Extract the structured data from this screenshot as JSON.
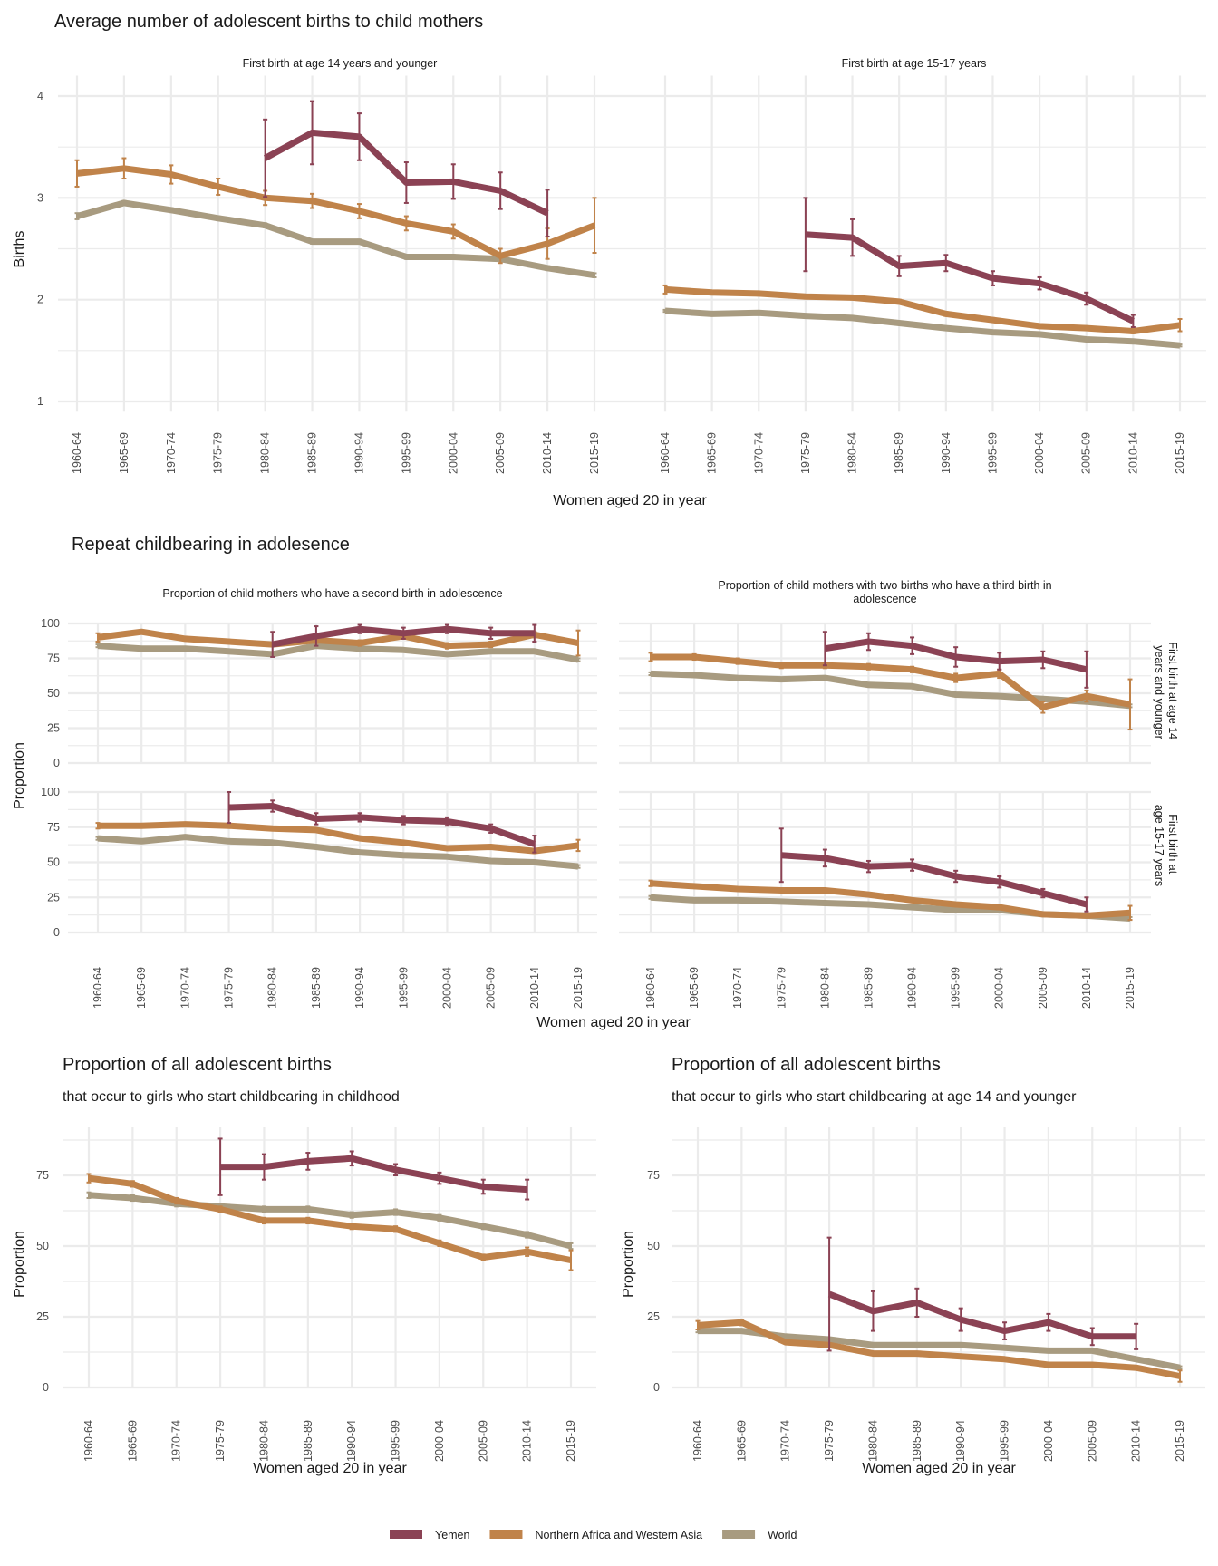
{
  "colors": {
    "Yemen": "#8b4254",
    "Northern Africa and Western Asia": "#c0834a",
    "World": "#a89b80"
  },
  "legend": {
    "items": [
      "Yemen",
      "Northern Africa and Western Asia",
      "World"
    ]
  },
  "sections": {
    "avg_births": {
      "title": "Average number of adolescent births to child mothers",
      "ylabel": "Births",
      "xlabel": "Women aged 20 in year"
    },
    "repeat": {
      "title": "Repeat childbearing in adolesence",
      "ylabel": "Proportion",
      "xlabel": "Women aged 20 in year",
      "row_strips": [
        "First birth at age 14 years and younger",
        "First birth at age 15-17 years"
      ]
    },
    "prop_child": {
      "title": "Proportion of all adolescent births",
      "subtitle": "that occur to girls who start childbearing in childhood",
      "ylabel": "Proportion",
      "xlabel": "Women aged 20 in year"
    },
    "prop_14": {
      "title": "Proportion of all adolescent births",
      "subtitle": "that occur to girls who start childbearing at age 14 and younger",
      "ylabel": "Proportion",
      "xlabel": "Women aged 20 in year"
    }
  },
  "chart_data": [
    {
      "id": "avg_14",
      "type": "line",
      "title": "First birth at age 14 years and younger",
      "xlabel": "Women aged 20 in year",
      "ylabel": "Births",
      "ylim": [
        0.9,
        4.2
      ],
      "yticks": [
        1,
        2,
        3,
        4
      ],
      "categories": [
        "1960-64",
        "1965-69",
        "1970-74",
        "1975-79",
        "1980-84",
        "1985-89",
        "1990-94",
        "1995-99",
        "2000-04",
        "2005-09",
        "2010-14",
        "2015-19"
      ],
      "series": [
        {
          "name": "World",
          "values": [
            2.82,
            2.95,
            2.88,
            2.8,
            2.73,
            2.57,
            2.57,
            2.42,
            2.42,
            2.4,
            2.31,
            2.24
          ],
          "err": [
            0.03,
            0.02,
            0.02,
            0.02,
            0.02,
            0.02,
            0.02,
            0.02,
            0.02,
            0.02,
            0.02,
            0.02
          ]
        },
        {
          "name": "Northern Africa and Western Asia",
          "values": [
            3.24,
            3.29,
            3.23,
            3.11,
            3.0,
            2.97,
            2.87,
            2.75,
            2.67,
            2.43,
            2.55,
            2.73
          ],
          "err": [
            0.13,
            0.1,
            0.09,
            0.08,
            0.07,
            0.07,
            0.07,
            0.07,
            0.07,
            0.07,
            0.15,
            0.27
          ]
        },
        {
          "name": "Yemen",
          "values": [
            null,
            null,
            null,
            null,
            3.39,
            3.64,
            3.6,
            3.15,
            3.16,
            3.07,
            2.85,
            null
          ],
          "err": [
            null,
            null,
            null,
            null,
            0.38,
            0.31,
            0.23,
            0.2,
            0.17,
            0.18,
            0.23,
            null
          ]
        }
      ]
    },
    {
      "id": "avg_15_17",
      "type": "line",
      "title": "First birth at age 15-17 years",
      "xlabel": "Women aged 20 in year",
      "ylabel": "Births",
      "ylim": [
        0.9,
        4.2
      ],
      "yticks": [
        1,
        2,
        3,
        4
      ],
      "categories": [
        "1960-64",
        "1965-69",
        "1970-74",
        "1975-79",
        "1980-84",
        "1985-89",
        "1990-94",
        "1995-99",
        "2000-04",
        "2005-09",
        "2010-14",
        "2015-19"
      ],
      "series": [
        {
          "name": "World",
          "values": [
            1.89,
            1.86,
            1.87,
            1.84,
            1.82,
            1.77,
            1.72,
            1.68,
            1.66,
            1.61,
            1.59,
            1.55
          ],
          "err": [
            0.01,
            0.01,
            0.01,
            0.01,
            0.01,
            0.01,
            0.01,
            0.01,
            0.01,
            0.01,
            0.01,
            0.01
          ]
        },
        {
          "name": "Northern Africa and Western Asia",
          "values": [
            2.1,
            2.07,
            2.06,
            2.03,
            2.02,
            1.98,
            1.86,
            1.8,
            1.74,
            1.72,
            1.69,
            1.75
          ],
          "err": [
            0.04,
            0.02,
            0.02,
            0.02,
            0.02,
            0.02,
            0.02,
            0.02,
            0.02,
            0.02,
            0.02,
            0.06
          ]
        },
        {
          "name": "Yemen",
          "values": [
            null,
            null,
            null,
            2.64,
            2.61,
            2.33,
            2.36,
            2.21,
            2.16,
            2.01,
            1.79,
            null
          ],
          "err": [
            null,
            null,
            null,
            0.36,
            0.18,
            0.1,
            0.08,
            0.07,
            0.06,
            0.06,
            0.06,
            null
          ]
        }
      ]
    },
    {
      "id": "rep_second_14",
      "type": "line",
      "title": "Proportion of child mothers who have a second birth in adolescence",
      "row": "First birth at age 14 years and younger",
      "ylabel": "Proportion",
      "ylim": [
        0,
        100
      ],
      "yticks": [
        0,
        25,
        50,
        75,
        100
      ],
      "categories": [
        "1960-64",
        "1965-69",
        "1970-74",
        "1975-79",
        "1980-84",
        "1985-89",
        "1990-94",
        "1995-99",
        "2000-04",
        "2005-09",
        "2010-14",
        "2015-19"
      ],
      "series": [
        {
          "name": "World",
          "values": [
            84,
            82,
            82,
            80,
            78,
            84,
            82,
            81,
            78,
            80,
            80,
            74
          ],
          "err": [
            1,
            1,
            1,
            1,
            1,
            1,
            1,
            1,
            1,
            1,
            1,
            1
          ]
        },
        {
          "name": "Northern Africa and Western Asia",
          "values": [
            90,
            94,
            89,
            87,
            85,
            88,
            86,
            91,
            84,
            85,
            92,
            86
          ],
          "err": [
            3,
            1,
            1,
            1,
            1,
            2,
            2,
            2,
            2,
            2,
            2,
            9
          ]
        },
        {
          "name": "Yemen",
          "values": [
            null,
            null,
            null,
            null,
            85,
            91,
            96,
            93,
            96,
            93,
            93,
            null
          ],
          "err": [
            null,
            null,
            null,
            null,
            9,
            7,
            3,
            4,
            3,
            4,
            6,
            null
          ]
        }
      ]
    },
    {
      "id": "rep_third_14",
      "type": "line",
      "title": "Proportion of child mothers with two births who have a third birth in adolescence",
      "row": "First birth at age 14 years and younger",
      "ylabel": "Proportion",
      "ylim": [
        0,
        100
      ],
      "yticks": [
        0,
        25,
        50,
        75,
        100
      ],
      "categories": [
        "1960-64",
        "1965-69",
        "1970-74",
        "1975-79",
        "1980-84",
        "1985-89",
        "1990-94",
        "1995-99",
        "2000-04",
        "2005-09",
        "2010-14",
        "2015-19"
      ],
      "series": [
        {
          "name": "World",
          "values": [
            64,
            63,
            61,
            60,
            61,
            56,
            55,
            49,
            48,
            46,
            44,
            41
          ],
          "err": [
            1,
            1,
            1,
            1,
            1,
            1,
            1,
            1,
            1,
            1,
            1,
            1
          ]
        },
        {
          "name": "Northern Africa and Western Asia",
          "values": [
            76,
            76,
            73,
            70,
            70,
            69,
            67,
            61,
            64,
            40,
            48,
            42
          ],
          "err": [
            3,
            2,
            2,
            2,
            2,
            2,
            2,
            3,
            3,
            4,
            4,
            18
          ]
        },
        {
          "name": "Yemen",
          "values": [
            null,
            null,
            null,
            null,
            82,
            87,
            84,
            76,
            73,
            74,
            67,
            null
          ],
          "err": [
            null,
            null,
            null,
            null,
            12,
            6,
            6,
            7,
            6,
            6,
            13,
            null
          ]
        }
      ]
    },
    {
      "id": "rep_second_15_17",
      "type": "line",
      "title": "Proportion of child mothers who have a second birth in adolescence",
      "row": "First birth at age 15-17 years",
      "ylabel": "Proportion",
      "ylim": [
        0,
        100
      ],
      "yticks": [
        0,
        25,
        50,
        75,
        100
      ],
      "categories": [
        "1960-64",
        "1965-69",
        "1970-74",
        "1975-79",
        "1980-84",
        "1985-89",
        "1990-94",
        "1995-99",
        "2000-04",
        "2005-09",
        "2010-14",
        "2015-19"
      ],
      "series": [
        {
          "name": "World",
          "values": [
            67,
            65,
            68,
            65,
            64,
            61,
            57,
            55,
            54,
            51,
            50,
            47
          ],
          "err": [
            1,
            1,
            1,
            1,
            1,
            1,
            1,
            1,
            1,
            1,
            1,
            1
          ]
        },
        {
          "name": "Northern Africa and Western Asia",
          "values": [
            76,
            76,
            77,
            76,
            74,
            73,
            67,
            64,
            60,
            61,
            58,
            62
          ],
          "err": [
            2,
            1,
            1,
            1,
            1,
            1,
            1,
            1,
            1,
            1,
            1,
            4
          ]
        },
        {
          "name": "Yemen",
          "values": [
            null,
            null,
            null,
            89,
            90,
            81,
            82,
            80,
            79,
            74,
            63,
            null
          ],
          "err": [
            null,
            null,
            null,
            11,
            4,
            4,
            3,
            3,
            3,
            3,
            6,
            null
          ]
        }
      ]
    },
    {
      "id": "rep_third_15_17",
      "type": "line",
      "title": "Proportion of child mothers with two births who have a third birth in adolescence",
      "row": "First birth at age 15-17 years",
      "ylabel": "Proportion",
      "ylim": [
        0,
        100
      ],
      "yticks": [
        0,
        25,
        50,
        75,
        100
      ],
      "categories": [
        "1960-64",
        "1965-69",
        "1970-74",
        "1975-79",
        "1980-84",
        "1985-89",
        "1990-94",
        "1995-99",
        "2000-04",
        "2005-09",
        "2010-14",
        "2015-19"
      ],
      "series": [
        {
          "name": "World",
          "values": [
            25,
            23,
            23,
            22,
            21,
            20,
            18,
            16,
            16,
            13,
            12,
            10
          ],
          "err": [
            1,
            1,
            1,
            1,
            1,
            1,
            1,
            1,
            1,
            1,
            1,
            1
          ]
        },
        {
          "name": "Northern Africa and Western Asia",
          "values": [
            35,
            33,
            31,
            30,
            30,
            27,
            23,
            20,
            18,
            13,
            12,
            14
          ],
          "err": [
            2,
            1,
            1,
            1,
            1,
            1,
            1,
            1,
            1,
            1,
            1,
            5
          ]
        },
        {
          "name": "Yemen",
          "values": [
            null,
            null,
            null,
            55,
            53,
            47,
            48,
            40,
            36,
            28,
            20,
            null
          ],
          "err": [
            null,
            null,
            null,
            19,
            6,
            4,
            4,
            4,
            4,
            3,
            5,
            null
          ]
        }
      ]
    },
    {
      "id": "prop_childhood",
      "type": "line",
      "title": "Proportion of all adolescent births",
      "subtitle": "that occur to girls who start childbearing in childhood",
      "xlabel": "Women aged 20 in year",
      "ylabel": "Proportion",
      "ylim": [
        0,
        92
      ],
      "yticks": [
        0,
        25,
        50,
        75
      ],
      "categories": [
        "1960-64",
        "1965-69",
        "1970-74",
        "1975-79",
        "1980-84",
        "1985-89",
        "1990-94",
        "1995-99",
        "2000-04",
        "2005-09",
        "2010-14",
        "2015-19"
      ],
      "series": [
        {
          "name": "World",
          "values": [
            68,
            67,
            65,
            64,
            63,
            63,
            61,
            62,
            60,
            57,
            54,
            50
          ],
          "err": [
            1,
            1,
            1,
            1,
            1,
            1,
            1,
            1,
            1,
            1,
            1,
            1
          ]
        },
        {
          "name": "Northern Africa and Western Asia",
          "values": [
            74,
            72,
            66,
            63,
            59,
            59,
            57,
            56,
            51,
            46,
            48,
            45
          ],
          "err": [
            1.5,
            1,
            1,
            1,
            1,
            1,
            1,
            1,
            1,
            1,
            1.5,
            3.5
          ]
        },
        {
          "name": "Yemen",
          "values": [
            null,
            null,
            null,
            78,
            78,
            80,
            81,
            77,
            74,
            71,
            70,
            null
          ],
          "err": [
            null,
            null,
            null,
            10,
            4.5,
            3,
            2.5,
            2,
            2,
            2.5,
            3.5,
            null
          ]
        }
      ]
    },
    {
      "id": "prop_14_younger",
      "type": "line",
      "title": "Proportion of all adolescent births",
      "subtitle": "that occur to girls who start childbearing at age 14 and younger",
      "xlabel": "Women aged 20 in year",
      "ylabel": "Proportion",
      "ylim": [
        0,
        92
      ],
      "yticks": [
        0,
        25,
        50,
        75
      ],
      "categories": [
        "1960-64",
        "1965-69",
        "1970-74",
        "1975-79",
        "1980-84",
        "1985-89",
        "1990-94",
        "1995-99",
        "2000-04",
        "2005-09",
        "2010-14",
        "2015-19"
      ],
      "series": [
        {
          "name": "World",
          "values": [
            20,
            20,
            18,
            17,
            15,
            15,
            15,
            14,
            13,
            13,
            10,
            7
          ],
          "err": [
            0.5,
            0.5,
            0.5,
            0.5,
            0.5,
            0.5,
            0.5,
            0.5,
            0.5,
            0.5,
            0.5,
            0.5
          ]
        },
        {
          "name": "Northern Africa and Western Asia",
          "values": [
            22,
            23,
            16,
            15,
            12,
            12,
            11,
            10,
            8,
            8,
            7,
            4
          ],
          "err": [
            1.5,
            1,
            0.5,
            0.5,
            0.5,
            0.5,
            0.5,
            0.5,
            0.5,
            0.5,
            0.5,
            2
          ]
        },
        {
          "name": "Yemen",
          "values": [
            null,
            null,
            null,
            33,
            27,
            30,
            24,
            20,
            23,
            18,
            18,
            null
          ],
          "err": [
            null,
            null,
            null,
            20,
            7,
            5,
            4,
            3,
            3,
            3,
            4.5,
            null
          ]
        }
      ]
    }
  ]
}
